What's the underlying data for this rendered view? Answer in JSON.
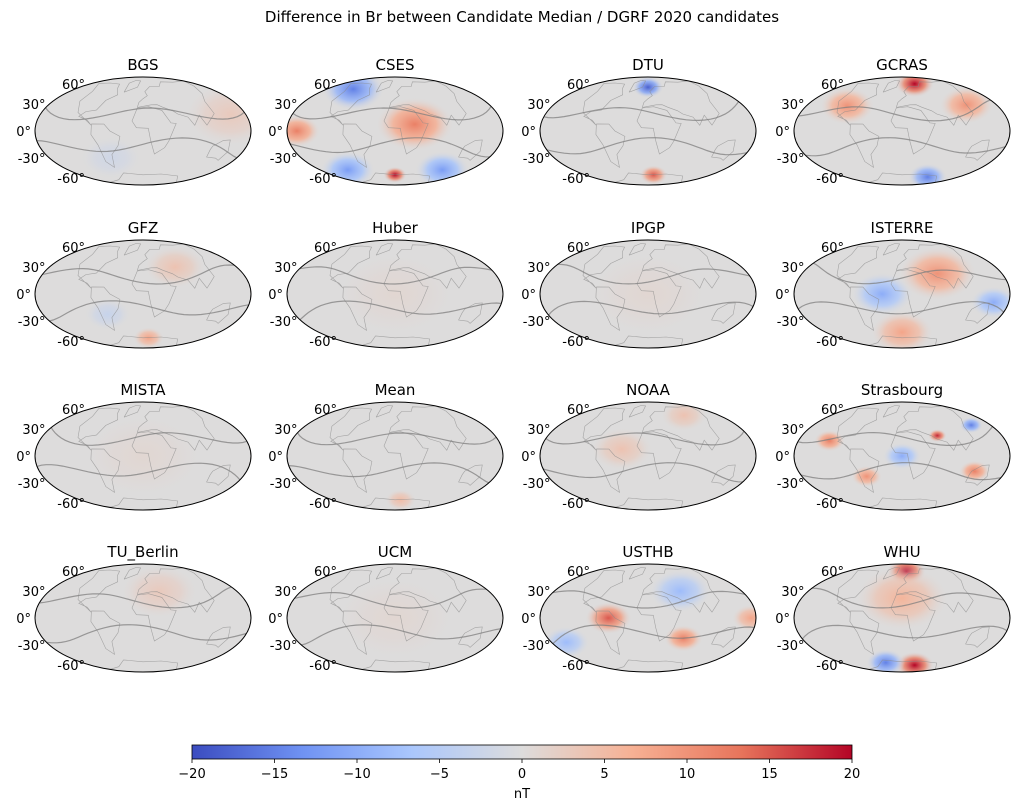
{
  "chart_data": {
    "type": "heatmap",
    "title": "Difference in Br between Candidate Median / DGRF 2020 candidates",
    "projection": "Hammer / equal-area world maps",
    "lat_tick_labels": [
      "60°",
      "30°",
      "0°",
      "-30°",
      "-60°"
    ],
    "colorbar": {
      "label": "nT",
      "vmin": -20,
      "vmax": 20,
      "ticks": [
        -20,
        -15,
        -10,
        -5,
        0,
        5,
        10,
        15,
        20
      ],
      "tick_labels": [
        "−20",
        "−15",
        "−10",
        "−5",
        "0",
        "5",
        "10",
        "15",
        "20"
      ],
      "colormap": "coolwarm",
      "colors": [
        "#3b4cc0",
        "#6f92f3",
        "#aac7fd",
        "#dddcdc",
        "#f7b194",
        "#e7745b",
        "#b40426"
      ]
    },
    "panels": [
      {
        "name": "BGS",
        "max_abs_nT": 4,
        "features": [
          {
            "lon": 150,
            "lat": 20,
            "value": 3,
            "spread": 60
          },
          {
            "lon": -60,
            "lat": -40,
            "value": -2,
            "spread": 40
          }
        ]
      },
      {
        "name": "CSES",
        "max_abs_nT": 20,
        "features": [
          {
            "lon": -120,
            "lat": 60,
            "value": -15,
            "spread": 40
          },
          {
            "lon": 30,
            "lat": 10,
            "value": 12,
            "spread": 50
          },
          {
            "lon": -160,
            "lat": 0,
            "value": 12,
            "spread": 30
          },
          {
            "lon": 0,
            "lat": -70,
            "value": 20,
            "spread": 15
          },
          {
            "lon": -120,
            "lat": -55,
            "value": -12,
            "spread": 35
          },
          {
            "lon": 120,
            "lat": -55,
            "value": -12,
            "spread": 35
          }
        ]
      },
      {
        "name": "DTU",
        "max_abs_nT": 20,
        "features": [
          {
            "lon": 0,
            "lat": 70,
            "value": -18,
            "spread": 20
          },
          {
            "lon": 20,
            "lat": -70,
            "value": 15,
            "spread": 18
          }
        ]
      },
      {
        "name": "GCRAS",
        "max_abs_nT": 20,
        "features": [
          {
            "lon": 60,
            "lat": 75,
            "value": 20,
            "spread": 25
          },
          {
            "lon": -100,
            "lat": 35,
            "value": 10,
            "spread": 35
          },
          {
            "lon": 120,
            "lat": 35,
            "value": 10,
            "spread": 35
          },
          {
            "lon": 100,
            "lat": -70,
            "value": -15,
            "spread": 25
          }
        ]
      },
      {
        "name": "GFZ",
        "max_abs_nT": 8,
        "features": [
          {
            "lon": 60,
            "lat": 40,
            "value": 4,
            "spread": 40
          },
          {
            "lon": 20,
            "lat": -70,
            "value": 8,
            "spread": 20
          },
          {
            "lon": -60,
            "lat": -30,
            "value": -3,
            "spread": 30
          }
        ]
      },
      {
        "name": "Huber",
        "max_abs_nT": 2,
        "features": [
          {
            "lon": 0,
            "lat": 0,
            "value": 1,
            "spread": 80
          }
        ]
      },
      {
        "name": "IPGP",
        "max_abs_nT": 2,
        "features": [
          {
            "lon": 0,
            "lat": 0,
            "value": 1,
            "spread": 80
          }
        ]
      },
      {
        "name": "ISTERRE",
        "max_abs_nT": 12,
        "features": [
          {
            "lon": -30,
            "lat": 0,
            "value": -10,
            "spread": 40
          },
          {
            "lon": 60,
            "lat": 30,
            "value": 10,
            "spread": 50
          },
          {
            "lon": 150,
            "lat": -10,
            "value": -10,
            "spread": 30
          },
          {
            "lon": 0,
            "lat": -60,
            "value": 8,
            "spread": 40
          }
        ]
      },
      {
        "name": "MISTA",
        "max_abs_nT": 2,
        "features": [
          {
            "lon": 0,
            "lat": 0,
            "value": 1,
            "spread": 80
          }
        ]
      },
      {
        "name": "Mean",
        "max_abs_nT": 5,
        "features": [
          {
            "lon": 20,
            "lat": -70,
            "value": 5,
            "spread": 20
          }
        ]
      },
      {
        "name": "NOAA",
        "max_abs_nT": 5,
        "features": [
          {
            "lon": -40,
            "lat": 10,
            "value": 4,
            "spread": 40
          },
          {
            "lon": 100,
            "lat": 60,
            "value": 4,
            "spread": 30
          }
        ]
      },
      {
        "name": "Strasbourg",
        "max_abs_nT": 20,
        "features": [
          {
            "lon": 60,
            "lat": 30,
            "value": 18,
            "spread": 12
          },
          {
            "lon": -120,
            "lat": 20,
            "value": 12,
            "spread": 20
          },
          {
            "lon": 0,
            "lat": 0,
            "value": -10,
            "spread": 25
          },
          {
            "lon": 120,
            "lat": -20,
            "value": 12,
            "spread": 20
          },
          {
            "lon": -60,
            "lat": -30,
            "value": 10,
            "spread": 20
          },
          {
            "lon": 140,
            "lat": 40,
            "value": -15,
            "spread": 15
          }
        ]
      },
      {
        "name": "TU_Berlin",
        "max_abs_nT": 4,
        "features": [
          {
            "lon": 30,
            "lat": 40,
            "value": 3,
            "spread": 50
          }
        ]
      },
      {
        "name": "UCM",
        "max_abs_nT": 2,
        "features": [
          {
            "lon": 0,
            "lat": 0,
            "value": 1,
            "spread": 80
          }
        ]
      },
      {
        "name": "USTHB",
        "max_abs_nT": 16,
        "features": [
          {
            "lon": -60,
            "lat": 0,
            "value": 15,
            "spread": 30
          },
          {
            "lon": 60,
            "lat": -30,
            "value": 12,
            "spread": 25
          },
          {
            "lon": 60,
            "lat": 40,
            "value": -8,
            "spread": 40
          },
          {
            "lon": 170,
            "lat": 0,
            "value": 8,
            "spread": 25
          },
          {
            "lon": -150,
            "lat": -30,
            "value": -8,
            "spread": 30
          }
        ]
      },
      {
        "name": "WHU",
        "max_abs_nT": 20,
        "features": [
          {
            "lon": 20,
            "lat": 75,
            "value": 20,
            "spread": 25
          },
          {
            "lon": 60,
            "lat": -75,
            "value": 20,
            "spread": 25
          },
          {
            "lon": -60,
            "lat": -70,
            "value": -15,
            "spread": 25
          },
          {
            "lon": 0,
            "lat": 30,
            "value": 6,
            "spread": 60
          }
        ]
      }
    ]
  }
}
